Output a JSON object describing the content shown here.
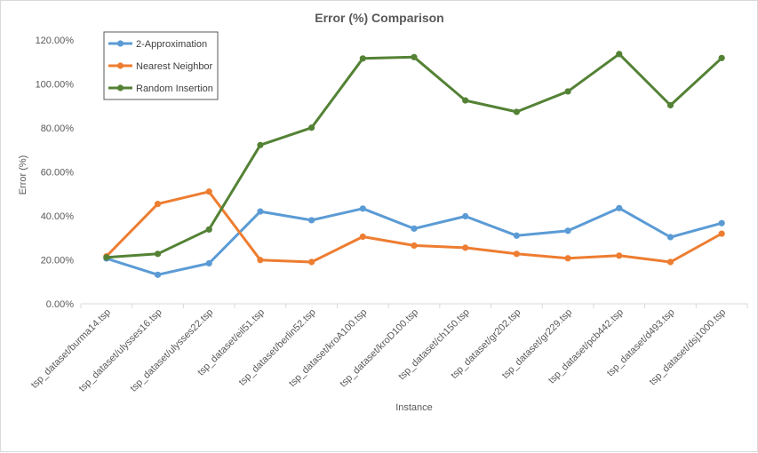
{
  "chart_data": {
    "type": "line",
    "title": "Error (%) Comparison",
    "xlabel": "Instance",
    "ylabel": "Error (%)",
    "ylim": [
      0,
      120
    ],
    "yticks": [
      "0.00%",
      "20.00%",
      "40.00%",
      "60.00%",
      "80.00%",
      "100.00%",
      "120.00%"
    ],
    "grid": false,
    "legend_position": "top-left",
    "categories": [
      "tsp_dataset/burma14.tsp",
      "tsp_dataset/ulysses16.tsp",
      "tsp_dataset/ulysses22.tsp",
      "tsp_dataset/eil51.tsp",
      "tsp_dataset/berlin52.tsp",
      "tsp_dataset/kroA100.tsp",
      "tsp_dataset/kroD100.tsp",
      "tsp_dataset/ch150.tsp",
      "tsp_dataset/gr202.tsp",
      "tsp_dataset/gr229.tsp",
      "tsp_dataset/pcb442.tsp",
      "tsp_dataset/d493.tsp",
      "tsp_dataset/dsj1000.tsp"
    ],
    "series": [
      {
        "name": "2-Approximation",
        "color": "#5b9bd5",
        "values": [
          20.6,
          13.2,
          18.4,
          42.0,
          38.0,
          43.3,
          34.2,
          39.8,
          31.0,
          33.2,
          43.5,
          30.3,
          36.7
        ]
      },
      {
        "name": "Nearest Neighbor",
        "color": "#ed7d31",
        "values": [
          21.6,
          45.4,
          51.0,
          19.9,
          19.0,
          30.5,
          26.5,
          25.5,
          22.7,
          20.7,
          21.9,
          19.0,
          31.9
        ]
      },
      {
        "name": "Random Insertion",
        "color": "#548235",
        "values": [
          21.1,
          22.7,
          33.8,
          72.2,
          80.1,
          111.6,
          112.2,
          92.5,
          87.3,
          96.6,
          113.6,
          90.3,
          111.8
        ]
      }
    ]
  }
}
